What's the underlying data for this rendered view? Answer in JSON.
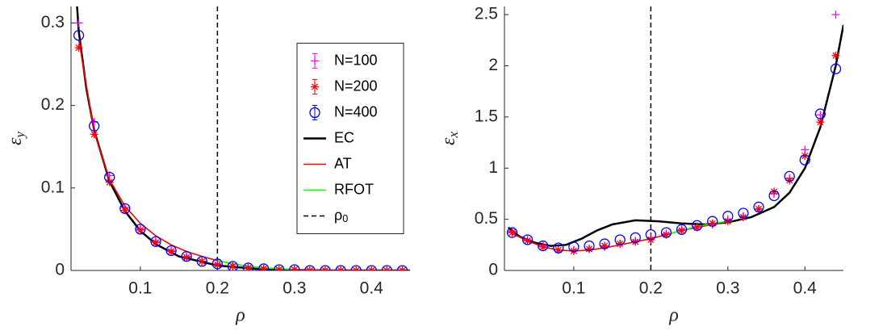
{
  "chart_data": [
    {
      "type": "scatter",
      "xlabel": "ρ",
      "ylabel": "εy",
      "xlim": [
        0.01,
        0.45
      ],
      "ylim": [
        0,
        0.32
      ],
      "xticks": [
        0.1,
        0.2,
        0.3,
        0.4
      ],
      "yticks": [
        0,
        0.1,
        0.2,
        0.3
      ],
      "legend": "center right",
      "series": [
        {
          "name": "N=100",
          "color": "#ff00ff",
          "marker": "plus",
          "x": [
            0.02,
            0.04,
            0.06,
            0.08,
            0.1,
            0.12,
            0.14,
            0.16,
            0.18,
            0.2,
            0.22,
            0.24,
            0.26,
            0.28,
            0.3,
            0.32,
            0.34,
            0.36,
            0.38,
            0.4,
            0.42,
            0.44
          ],
          "values": [
            0.3,
            0.18,
            0.115,
            0.076,
            0.05,
            0.035,
            0.024,
            0.017,
            0.011,
            0.008,
            0.005,
            0.003,
            0.002,
            0.001,
            0.001,
            0,
            0,
            0,
            0,
            0,
            0,
            0
          ]
        },
        {
          "name": "N=200",
          "color": "#ff0000",
          "marker": "asterisk",
          "x": [
            0.02,
            0.04,
            0.06,
            0.08,
            0.1,
            0.12,
            0.14,
            0.16,
            0.18,
            0.2,
            0.22,
            0.24,
            0.26,
            0.28,
            0.3,
            0.32,
            0.34,
            0.36,
            0.38,
            0.4,
            0.42,
            0.44
          ],
          "values": [
            0.27,
            0.165,
            0.107,
            0.073,
            0.049,
            0.034,
            0.023,
            0.016,
            0.011,
            0.007,
            0.005,
            0.003,
            0.002,
            0.001,
            0.001,
            0,
            0,
            0,
            0,
            0,
            0,
            0
          ]
        },
        {
          "name": "N=400",
          "color": "#0000ff",
          "marker": "circle",
          "x": [
            0.02,
            0.04,
            0.06,
            0.08,
            0.1,
            0.12,
            0.14,
            0.16,
            0.18,
            0.2,
            0.22,
            0.24,
            0.26,
            0.28,
            0.3,
            0.32,
            0.34,
            0.36,
            0.38,
            0.4,
            0.42,
            0.44
          ],
          "values": [
            0.285,
            0.175,
            0.113,
            0.075,
            0.05,
            0.035,
            0.024,
            0.017,
            0.011,
            0.008,
            0.005,
            0.003,
            0.002,
            0.001,
            0.001,
            0,
            0,
            0,
            0,
            0,
            0,
            0
          ]
        },
        {
          "name": "EC",
          "color": "#000000",
          "marker": "line",
          "x": [
            0.015,
            0.02,
            0.03,
            0.04,
            0.06,
            0.08,
            0.1,
            0.12,
            0.15,
            0.2,
            0.25,
            0.3,
            0.35,
            0.4,
            0.45
          ],
          "values": [
            0.36,
            0.29,
            0.22,
            0.17,
            0.108,
            0.072,
            0.048,
            0.032,
            0.017,
            0.006,
            0.002,
            0.0005,
            0,
            0,
            0
          ]
        },
        {
          "name": "AT",
          "color": "#ff0000",
          "marker": "line",
          "x": [
            0.02,
            0.04,
            0.06,
            0.08,
            0.1,
            0.12,
            0.14,
            0.16,
            0.18,
            0.2,
            0.22,
            0.24,
            0.26,
            0.3,
            0.35,
            0.4,
            0.45
          ],
          "values": [
            0.28,
            0.168,
            0.11,
            0.078,
            0.057,
            0.042,
            0.031,
            0.023,
            0.017,
            0.012,
            0.008,
            0.005,
            0.003,
            0.001,
            0,
            0,
            0
          ]
        },
        {
          "name": "RFOT",
          "color": "#00ff00",
          "marker": "line",
          "x": [
            0.2,
            0.22,
            0.24,
            0.26,
            0.28,
            0.3
          ],
          "values": [
            0.012,
            0.008,
            0.005,
            0.003,
            0.002,
            0.001
          ]
        }
      ],
      "vline": {
        "name": "ρ0",
        "x": 0.2,
        "color": "#000000"
      }
    },
    {
      "type": "scatter",
      "xlabel": "ρ",
      "ylabel": "εx",
      "xlim": [
        0.01,
        0.45
      ],
      "ylim": [
        0,
        2.58
      ],
      "xticks": [
        0.1,
        0.2,
        0.3,
        0.4
      ],
      "yticks": [
        0,
        0.5,
        1,
        1.5,
        2,
        2.5
      ],
      "series": [
        {
          "color": "#ff00ff",
          "marker": "plus",
          "x": [
            0.02,
            0.04,
            0.06,
            0.08,
            0.1,
            0.12,
            0.14,
            0.16,
            0.18,
            0.2,
            0.22,
            0.24,
            0.26,
            0.28,
            0.3,
            0.32,
            0.34,
            0.36,
            0.38,
            0.4,
            0.42,
            0.44
          ],
          "values": [
            0.38,
            0.3,
            0.24,
            0.2,
            0.2,
            0.21,
            0.23,
            0.26,
            0.29,
            0.32,
            0.36,
            0.4,
            0.43,
            0.45,
            0.5,
            0.53,
            0.6,
            0.75,
            0.9,
            1.18,
            1.52,
            2.5
          ]
        },
        {
          "color": "#ff0000",
          "marker": "asterisk",
          "x": [
            0.02,
            0.04,
            0.06,
            0.08,
            0.1,
            0.12,
            0.14,
            0.16,
            0.18,
            0.2,
            0.22,
            0.24,
            0.26,
            0.28,
            0.3,
            0.32,
            0.34,
            0.36,
            0.38,
            0.4,
            0.42,
            0.44
          ],
          "values": [
            0.37,
            0.29,
            0.23,
            0.2,
            0.19,
            0.21,
            0.24,
            0.26,
            0.28,
            0.3,
            0.35,
            0.39,
            0.42,
            0.46,
            0.48,
            0.52,
            0.6,
            0.77,
            0.88,
            1.12,
            1.45,
            2.1
          ]
        },
        {
          "color": "#0000ff",
          "marker": "circle",
          "x": [
            0.02,
            0.04,
            0.06,
            0.08,
            0.1,
            0.12,
            0.14,
            0.16,
            0.18,
            0.2,
            0.22,
            0.24,
            0.26,
            0.28,
            0.3,
            0.32,
            0.34,
            0.36,
            0.38,
            0.4,
            0.42,
            0.44
          ],
          "values": [
            0.37,
            0.3,
            0.24,
            0.22,
            0.23,
            0.24,
            0.26,
            0.3,
            0.32,
            0.35,
            0.37,
            0.4,
            0.44,
            0.48,
            0.53,
            0.56,
            0.62,
            0.73,
            0.92,
            1.08,
            1.53,
            1.97
          ]
        },
        {
          "color": "#000000",
          "marker": "line",
          "x": [
            0.015,
            0.03,
            0.05,
            0.07,
            0.09,
            0.11,
            0.13,
            0.15,
            0.18,
            0.21,
            0.24,
            0.27,
            0.3,
            0.33,
            0.36,
            0.38,
            0.4,
            0.42,
            0.44,
            0.45
          ],
          "values": [
            0.42,
            0.33,
            0.27,
            0.24,
            0.25,
            0.31,
            0.39,
            0.45,
            0.49,
            0.48,
            0.46,
            0.45,
            0.47,
            0.52,
            0.62,
            0.76,
            1.0,
            1.4,
            2.0,
            2.4
          ]
        },
        {
          "color": "#ff0000",
          "marker": "line",
          "x": [
            0.02,
            0.04,
            0.06,
            0.08,
            0.1,
            0.12,
            0.14,
            0.16,
            0.18,
            0.2,
            0.22,
            0.24,
            0.26,
            0.28,
            0.3
          ],
          "values": [
            0.36,
            0.29,
            0.23,
            0.2,
            0.19,
            0.2,
            0.22,
            0.25,
            0.28,
            0.31,
            0.35,
            0.39,
            0.42,
            0.45,
            0.48
          ]
        },
        {
          "color": "#00ff00",
          "marker": "line",
          "x": [
            0.22,
            0.24,
            0.26,
            0.28,
            0.3
          ],
          "values": [
            0.35,
            0.39,
            0.43,
            0.46,
            0.48
          ]
        }
      ],
      "vline": {
        "x": 0.2,
        "color": "#000000"
      }
    }
  ]
}
